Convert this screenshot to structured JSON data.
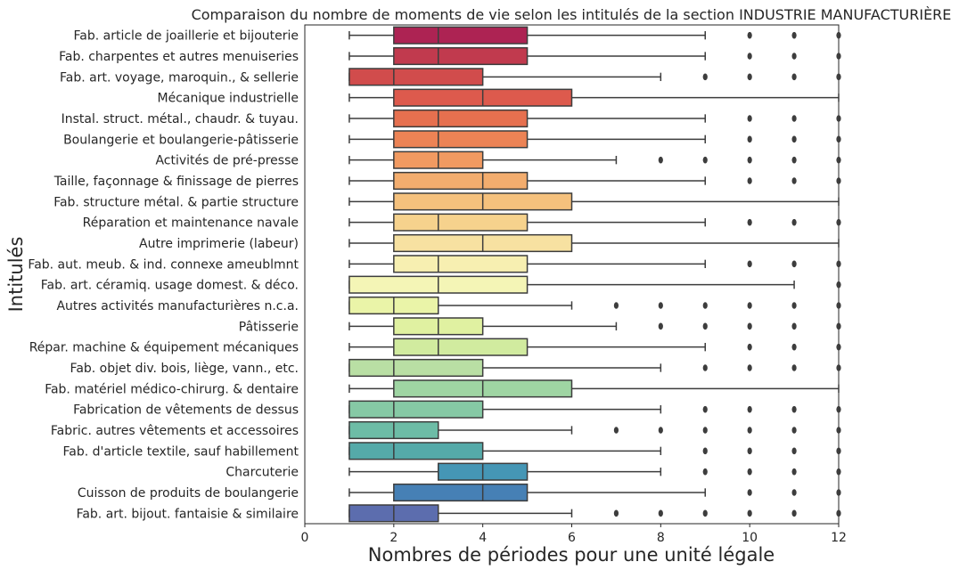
{
  "chart_data": {
    "type": "boxplot",
    "orientation": "horizontal",
    "title": "Comparaison du nombre de moments de vie selon les intitulés de la section INDUSTRIE MANUFACTURIÈRE",
    "xlabel": "Nombres de périodes pour une unité légale",
    "ylabel": "Intitulés",
    "xlim": [
      0,
      12
    ],
    "xticks": [
      0,
      2,
      4,
      6,
      8,
      10,
      12
    ],
    "grid": false,
    "legend": "none",
    "categories": [
      {
        "label": "Fab. article de joaillerie et bijouterie",
        "whislo": 1,
        "q1": 2,
        "med": 3,
        "q3": 5,
        "whishi": 9,
        "fliers": [
          10,
          11,
          12
        ],
        "color": "#ad2353"
      },
      {
        "label": "Fab. charpentes et autres menuiseries",
        "whislo": 1,
        "q1": 2,
        "med": 3,
        "q3": 5,
        "whishi": 9,
        "fliers": [
          10,
          11,
          12
        ],
        "color": "#c13a4e"
      },
      {
        "label": "Fab. art. voyage, maroquin., & sellerie",
        "whislo": 1,
        "q1": 1,
        "med": 2,
        "q3": 4,
        "whishi": 8,
        "fliers": [
          9,
          10,
          11,
          12
        ],
        "color": "#d14c4c"
      },
      {
        "label": "Mécanique industrielle",
        "whislo": 1,
        "q1": 2,
        "med": 4,
        "q3": 6,
        "whishi": 12,
        "fliers": [],
        "color": "#dd5a4d"
      },
      {
        "label": "Instal. struct. métal., chaudr. & tuyau.",
        "whislo": 1,
        "q1": 2,
        "med": 3,
        "q3": 5,
        "whishi": 9,
        "fliers": [
          10,
          11,
          12
        ],
        "color": "#e6704f"
      },
      {
        "label": "Boulangerie et boulangerie-pâtisserie",
        "whislo": 1,
        "q1": 2,
        "med": 3,
        "q3": 5,
        "whishi": 9,
        "fliers": [
          10,
          11,
          12
        ],
        "color": "#ec8355"
      },
      {
        "label": "Activités de pré-presse",
        "whislo": 1,
        "q1": 2,
        "med": 3,
        "q3": 4,
        "whishi": 7,
        "fliers": [
          8,
          9,
          10,
          11,
          12
        ],
        "color": "#f19a61"
      },
      {
        "label": "Taille, façonnage & finissage de pierres",
        "whislo": 1,
        "q1": 2,
        "med": 4,
        "q3": 5,
        "whishi": 9,
        "fliers": [
          10,
          11,
          12
        ],
        "color": "#f3ad6e"
      },
      {
        "label": "Fab. structure métal. & partie structure",
        "whislo": 1,
        "q1": 2,
        "med": 4,
        "q3": 6,
        "whishi": 12,
        "fliers": [],
        "color": "#f5c17d"
      },
      {
        "label": "Réparation et maintenance navale",
        "whislo": 1,
        "q1": 2,
        "med": 3,
        "q3": 5,
        "whishi": 9,
        "fliers": [
          10,
          11,
          12
        ],
        "color": "#f6d28d"
      },
      {
        "label": "Autre imprimerie (labeur)",
        "whislo": 1,
        "q1": 2,
        "med": 4,
        "q3": 6,
        "whishi": 12,
        "fliers": [],
        "color": "#f7e1a1"
      },
      {
        "label": "Fab. aut. meub. & ind. connexe ameublmnt",
        "whislo": 1,
        "q1": 2,
        "med": 3,
        "q3": 5,
        "whishi": 9,
        "fliers": [
          10,
          11,
          12
        ],
        "color": "#f7efb1"
      },
      {
        "label": "Fab. art. céramiq. usage domest. & déco.",
        "whislo": 1,
        "q1": 1,
        "med": 3,
        "q3": 5,
        "whishi": 11,
        "fliers": [
          12
        ],
        "color": "#f4f5b6"
      },
      {
        "label": "Autres activités manufacturières n.c.a.",
        "whislo": 1,
        "q1": 1,
        "med": 2,
        "q3": 3,
        "whishi": 6,
        "fliers": [
          7,
          8,
          9,
          10,
          11,
          12
        ],
        "color": "#eaf4a8"
      },
      {
        "label": "Pâtisserie",
        "whislo": 1,
        "q1": 2,
        "med": 3,
        "q3": 4,
        "whishi": 7,
        "fliers": [
          8,
          9,
          10,
          11,
          12
        ],
        "color": "#e0f1a1"
      },
      {
        "label": "Répar. machine & équipement mécaniques",
        "whislo": 1,
        "q1": 2,
        "med": 3,
        "q3": 5,
        "whishi": 9,
        "fliers": [
          10,
          11,
          12
        ],
        "color": "#d1eb9f"
      },
      {
        "label": "Fab. objet div. bois, liège, vann., etc.",
        "whislo": 1,
        "q1": 1,
        "med": 2,
        "q3": 4,
        "whishi": 8,
        "fliers": [
          9,
          10,
          11,
          12
        ],
        "color": "#b9dfa4"
      },
      {
        "label": "Fab. matériel médico-chirurg. & dentaire",
        "whislo": 1,
        "q1": 2,
        "med": 4,
        "q3": 6,
        "whishi": 12,
        "fliers": [],
        "color": "#9fd5a3"
      },
      {
        "label": "Fabrication de vêtements de dessus",
        "whislo": 1,
        "q1": 1,
        "med": 2,
        "q3": 4,
        "whishi": 8,
        "fliers": [
          9,
          10,
          11,
          12
        ],
        "color": "#86c9a5"
      },
      {
        "label": "Fabric. autres vêtements et accessoires",
        "whislo": 1,
        "q1": 1,
        "med": 2,
        "q3": 3,
        "whishi": 6,
        "fliers": [
          7,
          8,
          9,
          10,
          11,
          12
        ],
        "color": "#6dbca6"
      },
      {
        "label": "Fab. d'article textile, sauf habillement",
        "whislo": 1,
        "q1": 1,
        "med": 2,
        "q3": 4,
        "whishi": 8,
        "fliers": [
          9,
          10,
          11,
          12
        ],
        "color": "#55aaa9"
      },
      {
        "label": "Charcuterie",
        "whislo": 1,
        "q1": 3,
        "med": 4,
        "q3": 5,
        "whishi": 8,
        "fliers": [
          9,
          10,
          11,
          12
        ],
        "color": "#4596b5"
      },
      {
        "label": "Cuisson de produits de boulangerie",
        "whislo": 1,
        "q1": 2,
        "med": 4,
        "q3": 5,
        "whishi": 9,
        "fliers": [
          10,
          11,
          12
        ],
        "color": "#4680b5"
      },
      {
        "label": "Fab. art. bijout. fantaisie & similaire",
        "whislo": 1,
        "q1": 1,
        "med": 2,
        "q3": 3,
        "whishi": 6,
        "fliers": [
          7,
          8,
          9,
          10,
          11,
          12
        ],
        "color": "#5c6dae"
      }
    ]
  }
}
